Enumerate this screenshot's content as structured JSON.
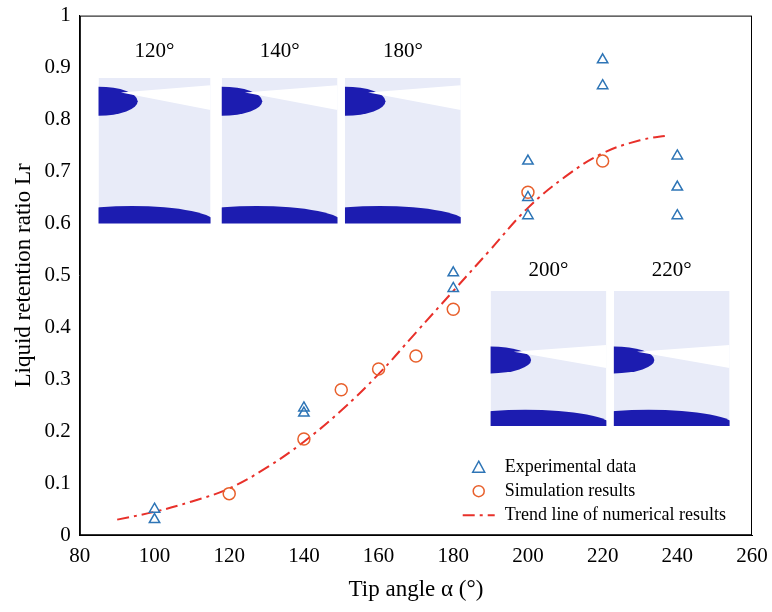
{
  "chart_data": {
    "type": "scatter",
    "x_label": "Tip angle α (°)",
    "y_label": "Liquid retention ratio Lr",
    "xlim": [
      80,
      260
    ],
    "xticks": [
      80,
      100,
      120,
      140,
      160,
      180,
      200,
      220,
      240,
      260
    ],
    "ylim": [
      0,
      1
    ],
    "yticks": [
      0,
      0.1,
      0.2,
      0.3,
      0.4,
      0.5,
      0.6,
      0.7,
      0.8,
      0.9,
      1
    ],
    "grid": false,
    "legend": "lower right",
    "annotations": [
      "120°",
      "140°",
      "180°",
      "200°",
      "220°"
    ],
    "series": [
      {
        "name": "Experimental data",
        "type": "scatter",
        "marker": "triangle",
        "color": "#2e75b6",
        "x": [
          100,
          100,
          140,
          140,
          180,
          180,
          200,
          200,
          200,
          220,
          220,
          240,
          240,
          240
        ],
        "values": [
          0.05,
          0.03,
          0.245,
          0.235,
          0.505,
          0.475,
          0.72,
          0.65,
          0.615,
          0.915,
          0.865,
          0.73,
          0.67,
          0.615
        ]
      },
      {
        "name": "Simulation results",
        "type": "scatter",
        "marker": "circle",
        "color": "#e8602c",
        "x": [
          120,
          140,
          150,
          160,
          170,
          180,
          200,
          220
        ],
        "values": [
          0.08,
          0.185,
          0.28,
          0.32,
          0.345,
          0.435,
          0.66,
          0.72
        ]
      },
      {
        "name": "Trend line of numerical results",
        "type": "line",
        "line_style": "dashdot",
        "color": "#e8302a",
        "x": [
          90,
          100,
          110,
          120,
          130,
          140,
          150,
          160,
          170,
          180,
          190,
          200,
          210,
          220,
          230,
          238
        ],
        "values": [
          0.03,
          0.045,
          0.065,
          0.09,
          0.13,
          0.18,
          0.24,
          0.31,
          0.39,
          0.47,
          0.55,
          0.63,
          0.69,
          0.735,
          0.76,
          0.77
        ]
      }
    ]
  }
}
